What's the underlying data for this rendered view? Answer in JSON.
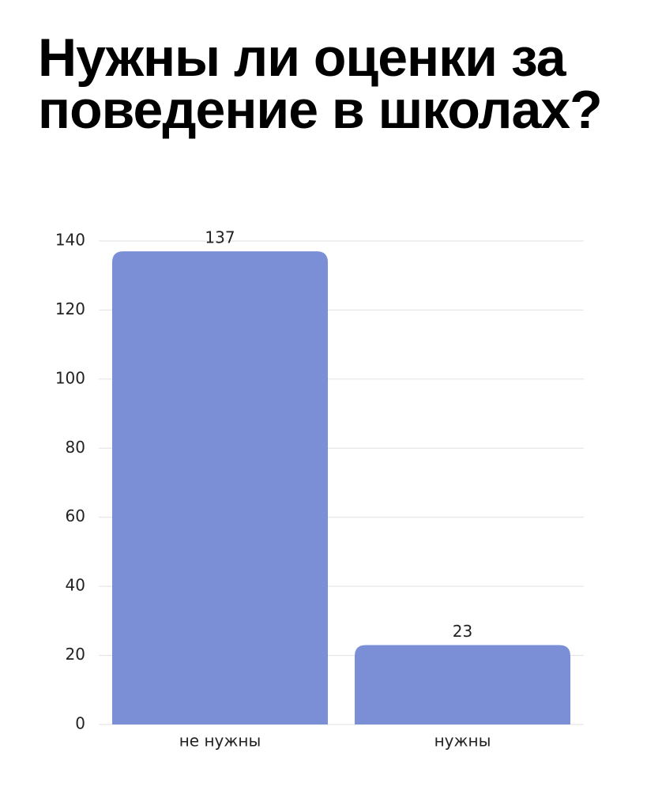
{
  "chart_data": {
    "type": "bar",
    "title": "Нужны ли оценки за поведение в школах?",
    "categories": [
      "не нужны",
      "нужны"
    ],
    "values": [
      137,
      23
    ],
    "color": "#7b8fd6",
    "ylim": [
      0,
      140
    ],
    "yticks": [
      0,
      20,
      40,
      60,
      80,
      100,
      120,
      140
    ],
    "grid": true
  }
}
